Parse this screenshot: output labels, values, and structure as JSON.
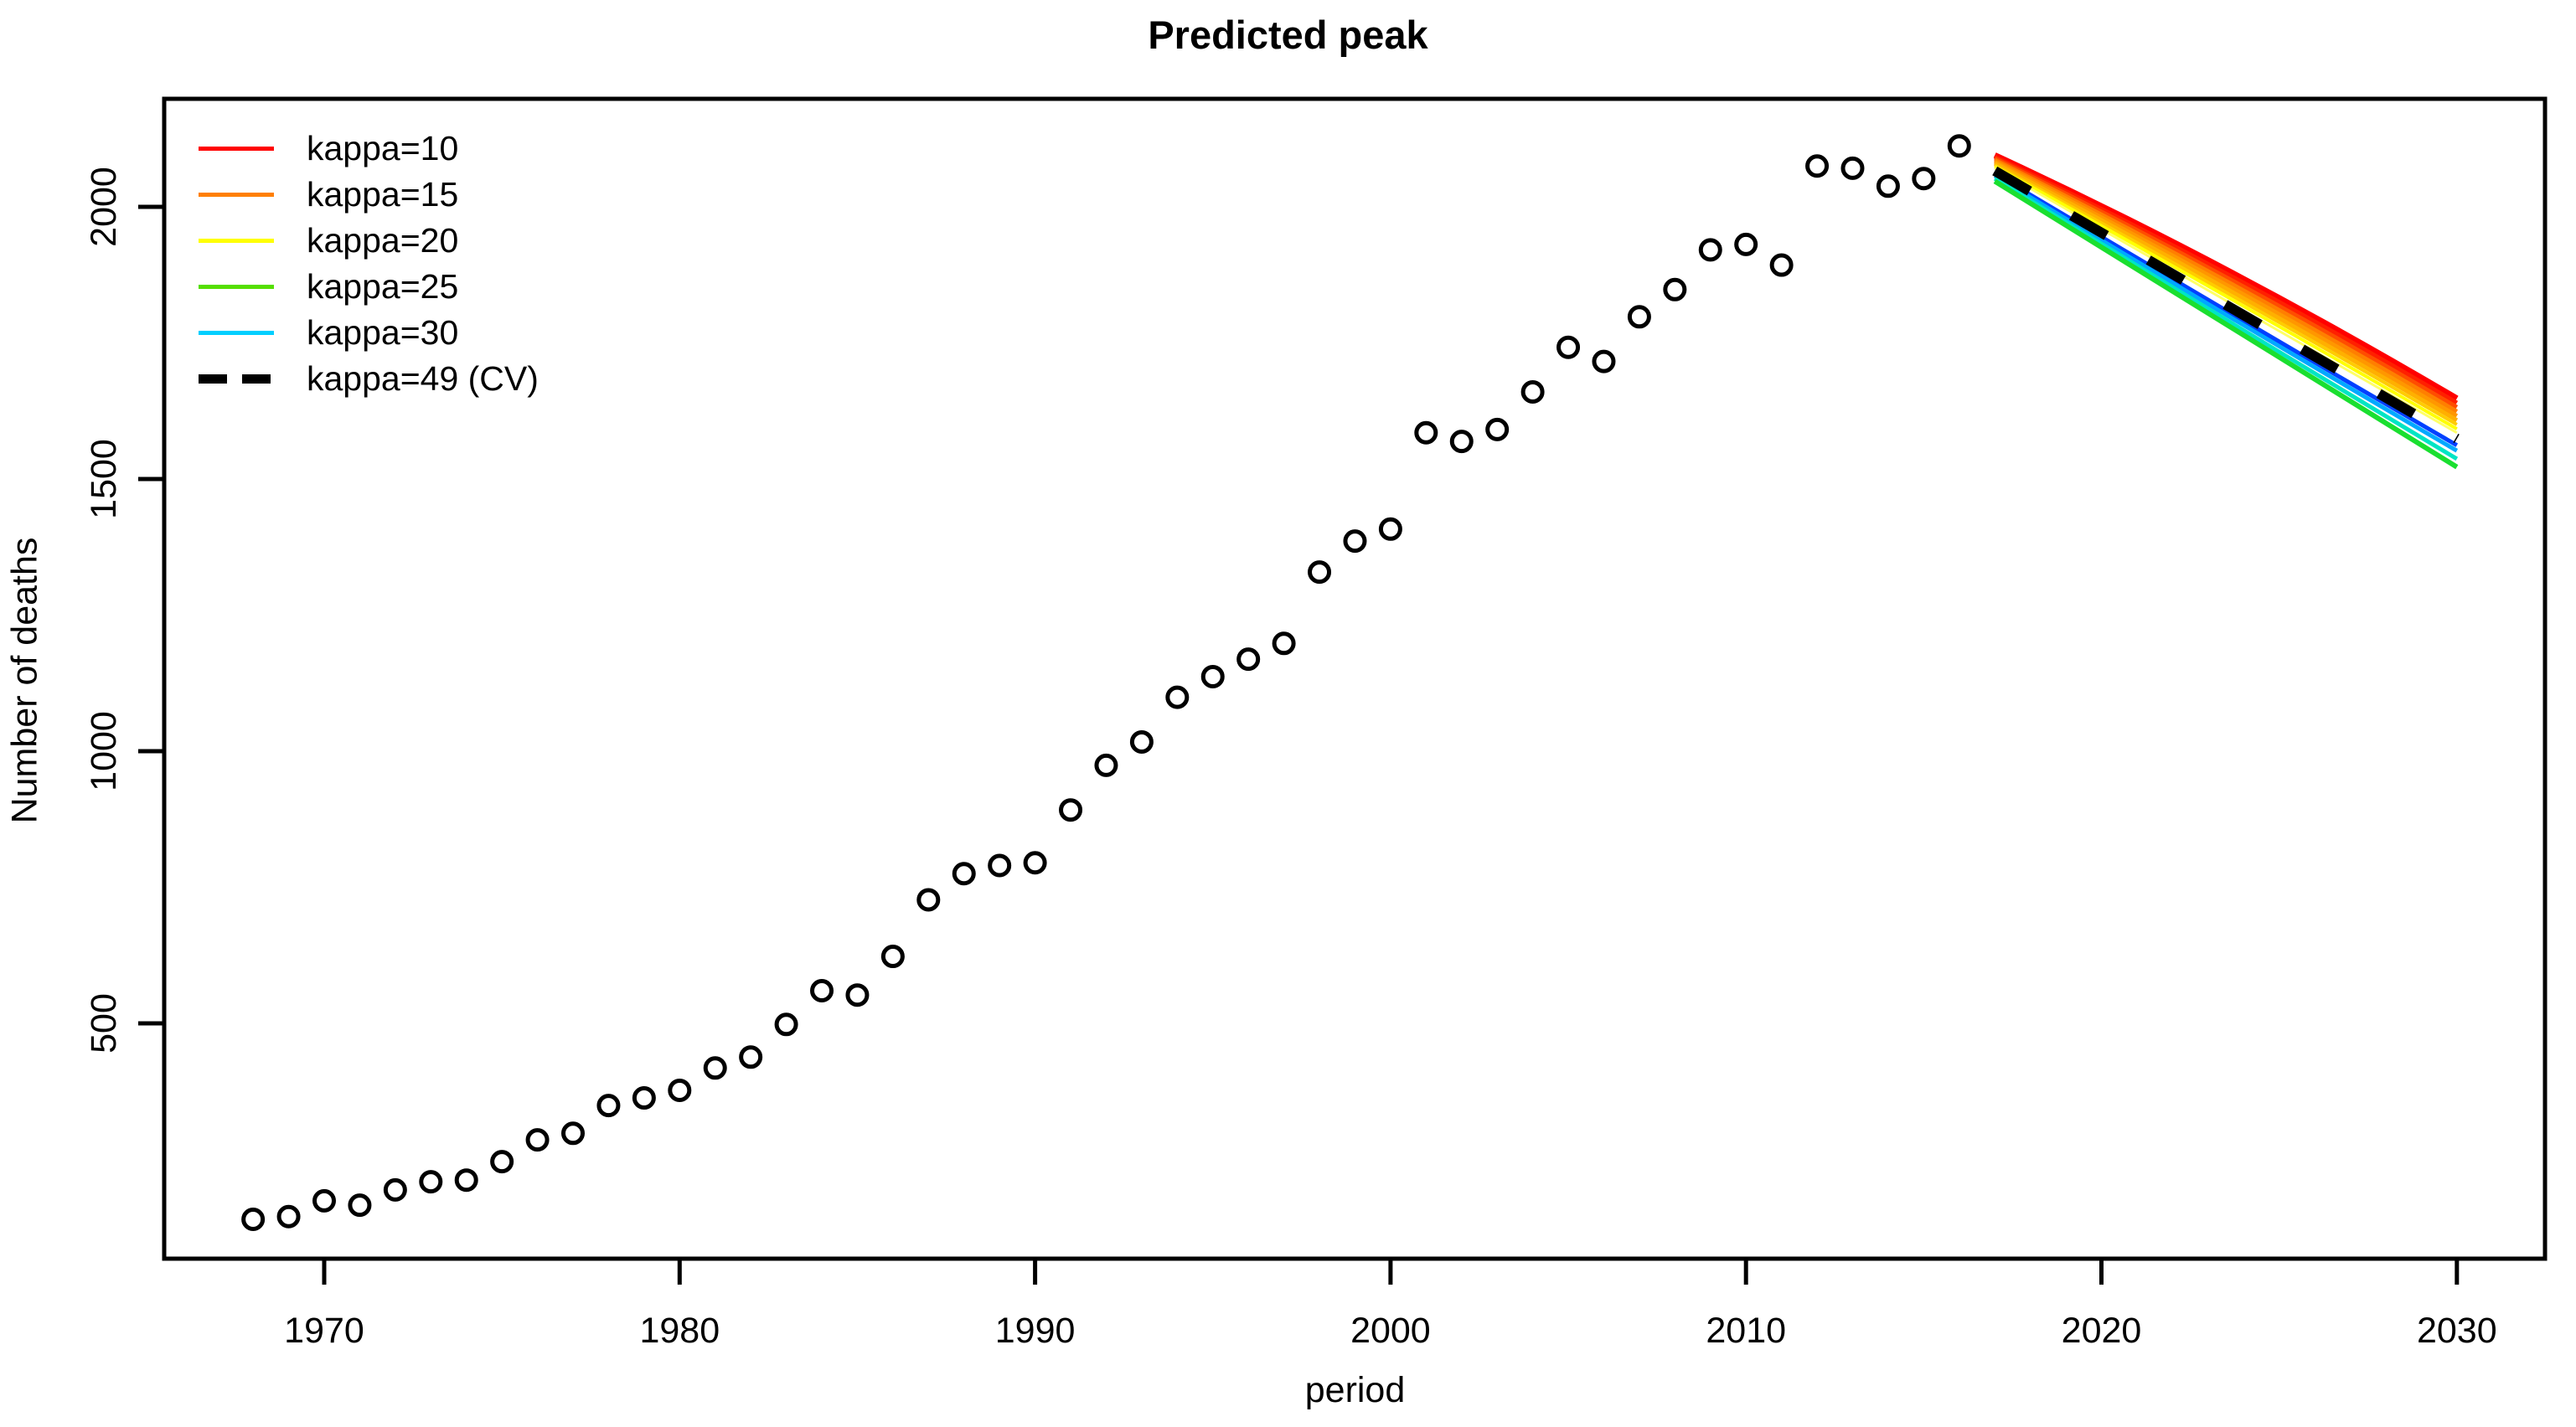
{
  "chart_data": {
    "type": "scatter",
    "title": "Predicted peak",
    "xlabel": "period",
    "ylabel": "Number of deaths",
    "x_ticks": [
      1970,
      1980,
      1990,
      2000,
      2010,
      2020,
      2030
    ],
    "y_ticks": [
      500,
      1000,
      1500,
      2000
    ],
    "xlim": [
      1965.5,
      2032.3
    ],
    "ylim": [
      70,
      2200
    ],
    "grid": false,
    "background": "#FFFFFF",
    "axis_color": "#000000",
    "legend_position": "top-left",
    "observed": {
      "marker": "open-circle",
      "color": "#000000",
      "years": [
        1968,
        1969,
        1970,
        1971,
        1972,
        1973,
        1974,
        1975,
        1976,
        1977,
        1978,
        1979,
        1980,
        1981,
        1982,
        1983,
        1984,
        1985,
        1986,
        1987,
        1988,
        1989,
        1990,
        1991,
        1992,
        1993,
        1994,
        1995,
        1996,
        1997,
        1998,
        1999,
        2000,
        2001,
        2002,
        2003,
        2004,
        2005,
        2006,
        2007,
        2008,
        2009,
        2010,
        2011,
        2012,
        2013,
        2014,
        2015,
        2016
      ],
      "values": [
        140,
        145,
        174,
        166,
        194,
        209,
        212,
        246,
        286,
        298,
        349,
        363,
        377,
        418,
        438,
        498,
        560,
        552,
        623,
        727,
        775,
        790,
        795,
        892,
        974,
        1017,
        1099,
        1137,
        1169,
        1198,
        1329,
        1386,
        1408,
        1585,
        1569,
        1591,
        1660,
        1742,
        1716,
        1798,
        1848,
        1921,
        1931,
        1893,
        2075,
        2071,
        2038,
        2052,
        2112
      ]
    },
    "forecast": {
      "anchor_years": [
        2017,
        2023.75,
        2030
      ],
      "series": [
        {
          "label": "kappa=10",
          "color": "#FF0000",
          "lw": 7,
          "dash": null,
          "anchors": [
            2095,
            1885,
            1648
          ]
        },
        {
          "label": "",
          "color": "#FF2000",
          "lw": 5,
          "dash": null,
          "anchors": [
            2092,
            1878,
            1640
          ]
        },
        {
          "label": "",
          "color": "#FF4D00",
          "lw": 5,
          "dash": null,
          "anchors": [
            2089,
            1871,
            1632
          ]
        },
        {
          "label": "kappa=15",
          "color": "#FF7F00",
          "lw": 5,
          "dash": null,
          "anchors": [
            2086,
            1864,
            1624
          ]
        },
        {
          "label": "",
          "color": "#FF9700",
          "lw": 5,
          "dash": null,
          "anchors": [
            2083,
            1857,
            1616
          ]
        },
        {
          "label": "",
          "color": "#FFB000",
          "lw": 5,
          "dash": null,
          "anchors": [
            2080,
            1850,
            1608
          ]
        },
        {
          "label": "",
          "color": "#FFCC00",
          "lw": 4,
          "dash": null,
          "anchors": [
            2077,
            1843,
            1600
          ]
        },
        {
          "label": "kappa=20",
          "color": "#FFFF00",
          "lw": 4,
          "dash": null,
          "anchors": [
            2074,
            1836,
            1592
          ]
        },
        {
          "label": "",
          "color": "#FFFF66",
          "lw": 3,
          "dash": null,
          "anchors": [
            2071,
            1829,
            1585
          ]
        },
        {
          "label": "",
          "color": "#0040FF",
          "lw": 5,
          "dash": null,
          "anchors": [
            2061,
            1810,
            1562
          ]
        },
        {
          "label": "kappa=30",
          "color": "#00A9FF",
          "lw": 5,
          "dash": null,
          "anchors": [
            2057,
            1802,
            1552
          ]
        },
        {
          "label": "",
          "color": "#00E5C4",
          "lw": 5,
          "dash": null,
          "anchors": [
            2052,
            1793,
            1537
          ]
        },
        {
          "label": "kappa=25",
          "color": "#1ADF30",
          "lw": 6,
          "dash": null,
          "anchors": [
            2047,
            1784,
            1522
          ]
        },
        {
          "label": "kappa=49 (CV)",
          "color": "#000000",
          "lw": 12,
          "dash": [
            48,
            58
          ],
          "anchors": [
            2066,
            1820,
            1574
          ]
        }
      ]
    },
    "legend": {
      "items": [
        {
          "label": "kappa=10",
          "color": "#FF0000",
          "dashed": false
        },
        {
          "label": "kappa=15",
          "color": "#FF7F00",
          "dashed": false
        },
        {
          "label": "kappa=20",
          "color": "#FFFF00",
          "dashed": false
        },
        {
          "label": "kappa=25",
          "color": "#55DF00",
          "dashed": false
        },
        {
          "label": "kappa=30",
          "color": "#00CFFF",
          "dashed": false
        },
        {
          "label": "kappa=49 (CV)",
          "color": "#000000",
          "dashed": true
        }
      ]
    }
  }
}
